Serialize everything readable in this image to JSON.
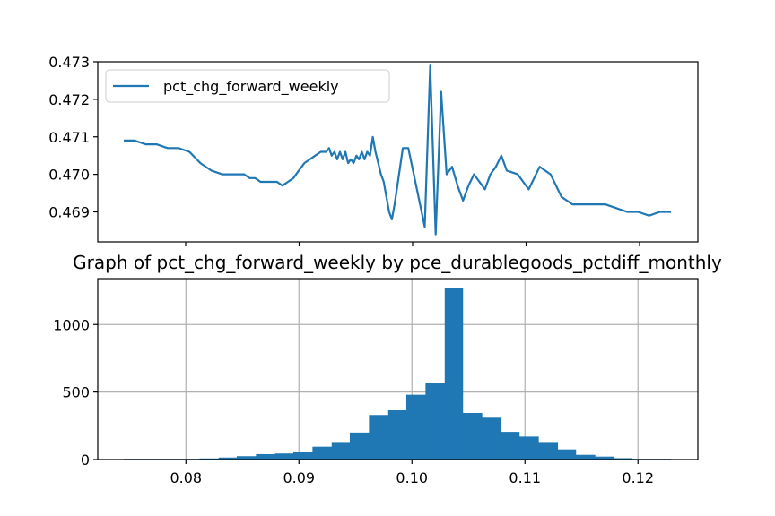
{
  "colors": {
    "line": "#1f77b4",
    "bar": "#1f77b4",
    "grid": "#b0b0b0",
    "axes": "#000000"
  },
  "chart_data": [
    {
      "type": "line",
      "title": "",
      "xlabel": "",
      "ylabel": "",
      "ylim": [
        0.4682,
        0.473
      ],
      "yticks": [
        0.469,
        0.47,
        0.471,
        0.472,
        0.473
      ],
      "ytick_labels": [
        "0.469",
        "0.470",
        "0.471",
        "0.472",
        "0.473"
      ],
      "xtick_count": 5,
      "grid": false,
      "legend": {
        "position": "upper left",
        "entries": [
          "pct_chg_forward_weekly"
        ]
      },
      "series": [
        {
          "name": "pct_chg_forward_weekly",
          "x": [
            0,
            2,
            4,
            6,
            8,
            10,
            12,
            14,
            16,
            18,
            20,
            22,
            23,
            24,
            25,
            26,
            27,
            28,
            29,
            30,
            31,
            32,
            33,
            34,
            35,
            36,
            37,
            37.5,
            38,
            38.5,
            39,
            39.5,
            40,
            40.5,
            41,
            41.5,
            42,
            42.5,
            43,
            43.5,
            44,
            44.5,
            45,
            45.5,
            46,
            46.5,
            47,
            47.5,
            48,
            48.5,
            49,
            49.5,
            50,
            51,
            52,
            53,
            54,
            55,
            56,
            57,
            58,
            59,
            60,
            61,
            62,
            63,
            64,
            65,
            66,
            67,
            68,
            69,
            70,
            72,
            74,
            76,
            78,
            80,
            82,
            84,
            86,
            88,
            90,
            92,
            94,
            96,
            98,
            100
          ],
          "y": [
            0.4709,
            0.4709,
            0.4708,
            0.4708,
            0.4707,
            0.4707,
            0.4706,
            0.4703,
            0.4701,
            0.47,
            0.47,
            0.47,
            0.4699,
            0.4699,
            0.4698,
            0.4698,
            0.4698,
            0.4698,
            0.4697,
            0.4698,
            0.4699,
            0.4701,
            0.4703,
            0.4704,
            0.4705,
            0.4706,
            0.4706,
            0.4707,
            0.4705,
            0.4706,
            0.4704,
            0.4706,
            0.4704,
            0.4706,
            0.4703,
            0.4704,
            0.4703,
            0.4705,
            0.4704,
            0.4706,
            0.4704,
            0.4706,
            0.4705,
            0.471,
            0.4706,
            0.4703,
            0.47,
            0.4698,
            0.4694,
            0.469,
            0.4688,
            0.4692,
            0.4697,
            0.4707,
            0.4707,
            0.47,
            0.4693,
            0.4686,
            0.4729,
            0.4684,
            0.4722,
            0.47,
            0.4702,
            0.4697,
            0.4693,
            0.4697,
            0.47,
            0.4698,
            0.4696,
            0.47,
            0.4702,
            0.4705,
            0.4701,
            0.47,
            0.4696,
            0.4702,
            0.47,
            0.4694,
            0.4692,
            0.4692,
            0.4692,
            0.4692,
            0.4691,
            0.469,
            0.469,
            0.4689,
            0.469,
            0.469
          ]
        }
      ]
    },
    {
      "type": "bar",
      "title": "Graph of pct_chg_forward_weekly by pce_durablegoods_pctdiff_monthly",
      "xlabel": "",
      "ylabel": "",
      "xlim": [
        0.0722,
        0.1253
      ],
      "ylim": [
        0,
        1340
      ],
      "xticks": [
        0.08,
        0.09,
        0.1,
        0.11,
        0.12
      ],
      "xtick_labels": [
        "0.08",
        "0.09",
        "0.10",
        "0.11",
        "0.12"
      ],
      "yticks": [
        0,
        500,
        1000
      ],
      "ytick_labels": [
        "0",
        "500",
        "1000"
      ],
      "grid": true,
      "bin_edges": [
        0.0745,
        0.0762,
        0.0778,
        0.0795,
        0.0812,
        0.0829,
        0.0845,
        0.0862,
        0.0879,
        0.0895,
        0.0912,
        0.0929,
        0.0945,
        0.0962,
        0.0979,
        0.0995,
        0.1012,
        0.1029,
        0.1045,
        0.1062,
        0.1079,
        0.1095,
        0.1112,
        0.1129,
        0.1145,
        0.1162,
        0.1179,
        0.1195,
        0.1212,
        0.1229
      ],
      "values": [
        5,
        5,
        5,
        5,
        8,
        15,
        25,
        40,
        45,
        55,
        95,
        130,
        200,
        330,
        365,
        480,
        565,
        1270,
        345,
        310,
        205,
        170,
        130,
        75,
        35,
        22,
        10,
        5,
        5
      ]
    }
  ]
}
